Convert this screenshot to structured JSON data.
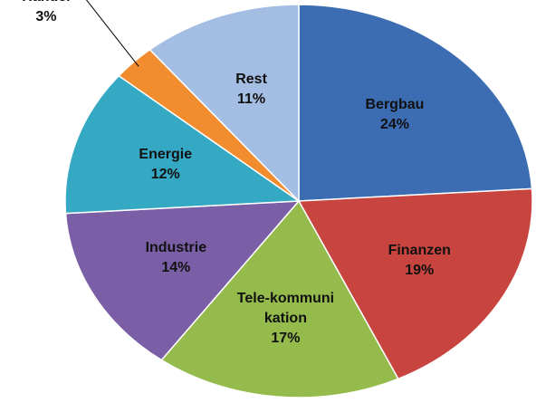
{
  "chart_data": {
    "type": "pie",
    "categories": [
      "Bergbau",
      "Finanzen",
      "Tele-kommunikation",
      "Industrie",
      "Energie",
      "Handel",
      "Rest"
    ],
    "values": [
      24,
      19,
      17,
      14,
      12,
      3,
      11
    ],
    "value_labels": [
      "24%",
      "19%",
      "17%",
      "14%",
      "12%",
      "3%",
      "11%"
    ],
    "colors": [
      "#3c6db3",
      "#c8443f",
      "#94bb4c",
      "#7b5fa6",
      "#35a9c4",
      "#f18c2f",
      "#a4bde2"
    ]
  }
}
